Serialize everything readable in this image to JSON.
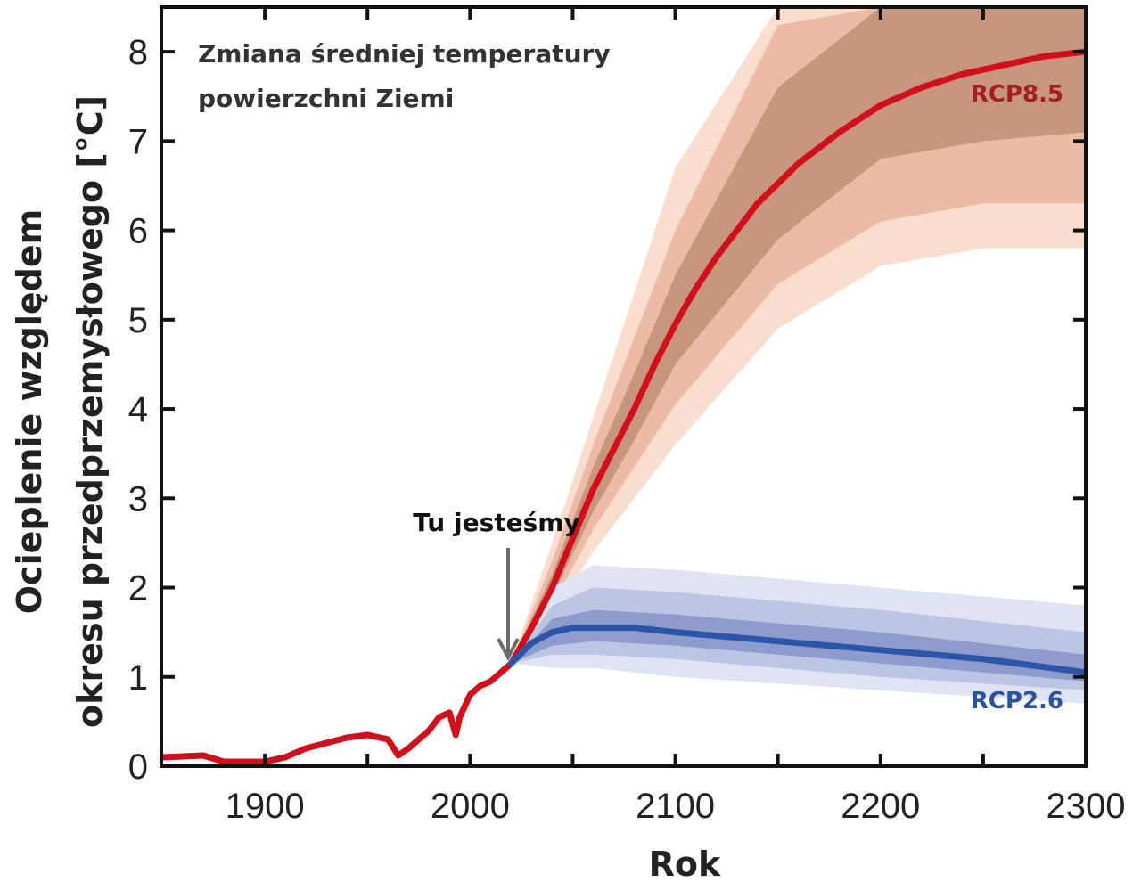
{
  "chart_data": {
    "type": "line",
    "title": [
      "Zmiana średniej temperatury",
      "powierzchni Ziemi"
    ],
    "xlabel": "Rok",
    "ylabel": [
      "Ocieplenie względem",
      "okresu przedprzemysłowego [°C]"
    ],
    "xlim": [
      1850,
      2300
    ],
    "ylim": [
      0,
      8.5
    ],
    "xticks": [
      1900,
      2000,
      2100,
      2200,
      2300
    ],
    "yticks": [
      0,
      1,
      2,
      3,
      4,
      5,
      6,
      7,
      8
    ],
    "grid": false,
    "annotation": {
      "text": "Tu jesteśmy",
      "x": 2020,
      "y": 1.15
    },
    "series": [
      {
        "name": "RCP8.5",
        "color": "#d0101a",
        "label_color": "#a61c24",
        "x": [
          1850,
          1870,
          1880,
          1900,
          1910,
          1920,
          1940,
          1950,
          1960,
          1965,
          1970,
          1980,
          1985,
          1990,
          1993,
          1995,
          2000,
          2005,
          2010,
          2020,
          2030,
          2040,
          2050,
          2060,
          2070,
          2080,
          2090,
          2100,
          2110,
          2120,
          2130,
          2140,
          2160,
          2180,
          2200,
          2220,
          2240,
          2260,
          2280,
          2300
        ],
        "y": [
          0.1,
          0.12,
          0.05,
          0.05,
          0.1,
          0.2,
          0.32,
          0.35,
          0.3,
          0.12,
          0.2,
          0.4,
          0.55,
          0.6,
          0.35,
          0.55,
          0.8,
          0.9,
          0.95,
          1.15,
          1.55,
          2.0,
          2.55,
          3.1,
          3.55,
          4.0,
          4.5,
          4.95,
          5.35,
          5.7,
          6.0,
          6.3,
          6.75,
          7.1,
          7.4,
          7.6,
          7.75,
          7.85,
          7.95,
          8.0
        ],
        "bands": {
          "x": [
            2020,
            2040,
            2060,
            2080,
            2100,
            2150,
            2200,
            2250,
            2300
          ],
          "outer": {
            "low": [
              1.15,
              1.7,
              2.4,
              3.0,
              3.6,
              4.9,
              5.6,
              5.8,
              5.8
            ],
            "high": [
              1.15,
              2.5,
              3.9,
              5.3,
              6.7,
              8.5,
              8.5,
              8.5,
              8.5
            ],
            "color": "#f9ddcf"
          },
          "mid": {
            "low": [
              1.15,
              1.8,
              2.65,
              3.35,
              4.05,
              5.4,
              6.1,
              6.3,
              6.3
            ],
            "high": [
              1.15,
              2.3,
              3.6,
              4.8,
              6.0,
              8.3,
              8.5,
              8.5,
              8.5
            ],
            "color": "#ecbba5"
          },
          "inner": {
            "low": [
              1.15,
              1.9,
              2.85,
              3.65,
              4.5,
              5.9,
              6.8,
              7.0,
              7.1
            ],
            "high": [
              1.15,
              2.15,
              3.35,
              4.4,
              5.5,
              7.6,
              8.5,
              8.5,
              8.5
            ],
            "color": "#c8957f"
          }
        }
      },
      {
        "name": "RCP2.6",
        "color": "#2a55a8",
        "label_color": "#2a52a0",
        "x": [
          2020,
          2030,
          2040,
          2050,
          2060,
          2080,
          2100,
          2150,
          2200,
          2250,
          2300
        ],
        "y": [
          1.15,
          1.38,
          1.5,
          1.55,
          1.55,
          1.55,
          1.5,
          1.4,
          1.3,
          1.2,
          1.05
        ],
        "bands": {
          "x": [
            2020,
            2040,
            2060,
            2100,
            2200,
            2300
          ],
          "outer": {
            "low": [
              1.15,
              1.1,
              1.1,
              1.0,
              0.85,
              0.7
            ],
            "high": [
              1.15,
              2.0,
              2.25,
              2.2,
              2.0,
              1.8
            ],
            "color": "#dfe3f3"
          },
          "mid": {
            "low": [
              1.15,
              1.25,
              1.25,
              1.2,
              1.0,
              0.85
            ],
            "high": [
              1.15,
              1.8,
              2.0,
              1.95,
              1.75,
              1.5
            ],
            "color": "#bcc5e4"
          },
          "inner": {
            "low": [
              1.15,
              1.35,
              1.4,
              1.35,
              1.15,
              0.95
            ],
            "high": [
              1.15,
              1.65,
              1.75,
              1.7,
              1.5,
              1.25
            ],
            "color": "#8f9bcd"
          }
        }
      }
    ]
  }
}
